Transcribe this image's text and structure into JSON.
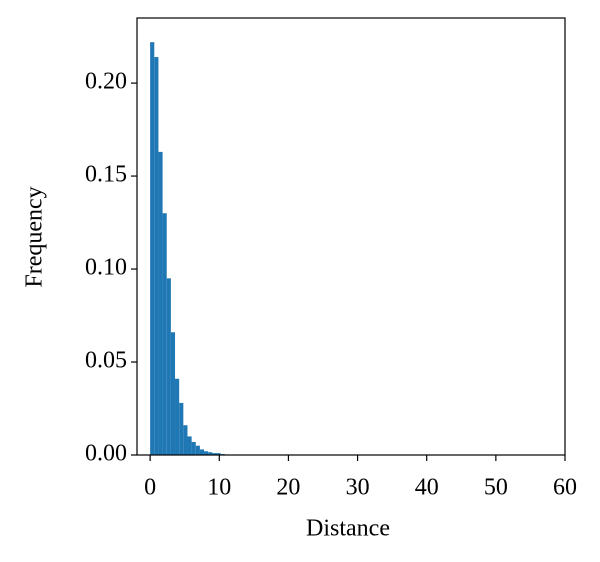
{
  "chart_data": {
    "type": "histogram",
    "x_label": "Distance",
    "y_label": "Frequency",
    "bins": [
      0,
      0.6,
      1.2,
      1.8,
      2.4,
      3.0,
      3.6,
      4.2,
      4.8,
      5.4,
      6.0,
      6.6,
      7.2,
      7.8,
      8.4,
      9.0,
      9.6,
      10.2,
      10.8
    ],
    "values": [
      0.222,
      0.214,
      0.163,
      0.13,
      0.095,
      0.066,
      0.041,
      0.028,
      0.016,
      0.01,
      0.007,
      0.005,
      0.003,
      0.002,
      0.0015,
      0.001,
      0.001,
      0.0005
    ],
    "color": "#1f77b4",
    "xlim": [
      -1.9,
      60
    ],
    "xticks": [
      0,
      10,
      20,
      30,
      40,
      50,
      60
    ],
    "ylim": [
      0,
      0.235
    ],
    "yticks": [
      {
        "value": 0,
        "label": "0.00"
      },
      {
        "value": 0.05,
        "label": "0.05"
      },
      {
        "value": 0.1,
        "label": "0.10"
      },
      {
        "value": 0.15,
        "label": "0.15"
      },
      {
        "value": 0.2,
        "label": "0.20"
      }
    ]
  }
}
